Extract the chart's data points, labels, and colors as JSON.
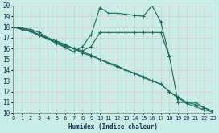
{
  "xlabel": "Humidex (Indice chaleur)",
  "xlim": [
    0,
    23
  ],
  "ylim": [
    10,
    20
  ],
  "xticks": [
    0,
    1,
    2,
    3,
    4,
    5,
    6,
    7,
    8,
    9,
    10,
    11,
    12,
    13,
    14,
    15,
    16,
    17,
    18,
    19,
    20,
    21,
    22,
    23
  ],
  "yticks": [
    10,
    11,
    12,
    13,
    14,
    15,
    16,
    17,
    18,
    19,
    20
  ],
  "bg_color": "#c8ece6",
  "line_color": "#1a6b5a",
  "grid_color": "#e8c8c8",
  "line1_x": [
    0,
    1,
    2,
    3,
    4,
    5,
    6,
    7,
    8,
    9,
    10,
    11,
    12,
    13,
    14,
    15,
    16,
    17,
    18
  ],
  "line1_y": [
    18,
    17.9,
    17.8,
    17.5,
    17.0,
    16.5,
    16.2,
    16.0,
    15.8,
    16.2,
    17.5,
    17.5,
    17.5,
    17.5,
    17.5,
    17.5,
    17.5,
    17.5,
    15.3
  ],
  "line2_x": [
    0,
    1,
    2,
    3,
    4,
    5,
    6,
    7,
    8,
    9,
    10,
    11,
    12,
    13,
    14,
    15,
    16,
    17,
    18,
    19,
    20,
    21,
    22,
    23
  ],
  "line2_y": [
    18,
    17.9,
    17.7,
    17.3,
    16.9,
    16.5,
    16.1,
    15.7,
    16.2,
    17.3,
    19.8,
    19.3,
    19.3,
    19.2,
    19.1,
    19.0,
    20.0,
    18.5,
    15.3,
    11.0,
    11.0,
    11.0,
    10.5,
    10.2
  ],
  "line3_x": [
    0,
    1,
    2,
    3,
    4,
    5,
    6,
    7,
    8,
    9,
    10,
    11,
    12,
    13,
    14,
    15,
    16,
    17,
    18,
    19,
    20,
    21,
    22,
    23
  ],
  "line3_y": [
    18,
    17.8,
    17.6,
    17.3,
    17.0,
    16.7,
    16.4,
    16.0,
    15.7,
    15.4,
    15.0,
    14.7,
    14.4,
    14.0,
    13.7,
    13.4,
    13.0,
    12.7,
    12.0,
    11.5,
    11.0,
    10.8,
    10.5,
    10.2
  ],
  "line4_x": [
    0,
    1,
    2,
    3,
    4,
    5,
    6,
    7,
    8,
    9,
    10,
    11,
    12,
    13,
    14,
    15,
    16,
    17,
    18,
    19,
    20,
    21,
    22,
    23
  ],
  "line4_y": [
    18,
    17.8,
    17.6,
    17.2,
    16.9,
    16.6,
    16.3,
    16.0,
    15.6,
    15.3,
    15.0,
    14.6,
    14.3,
    14.0,
    13.7,
    13.3,
    13.0,
    12.7,
    12.0,
    11.4,
    10.9,
    10.6,
    10.3,
    10.1
  ]
}
